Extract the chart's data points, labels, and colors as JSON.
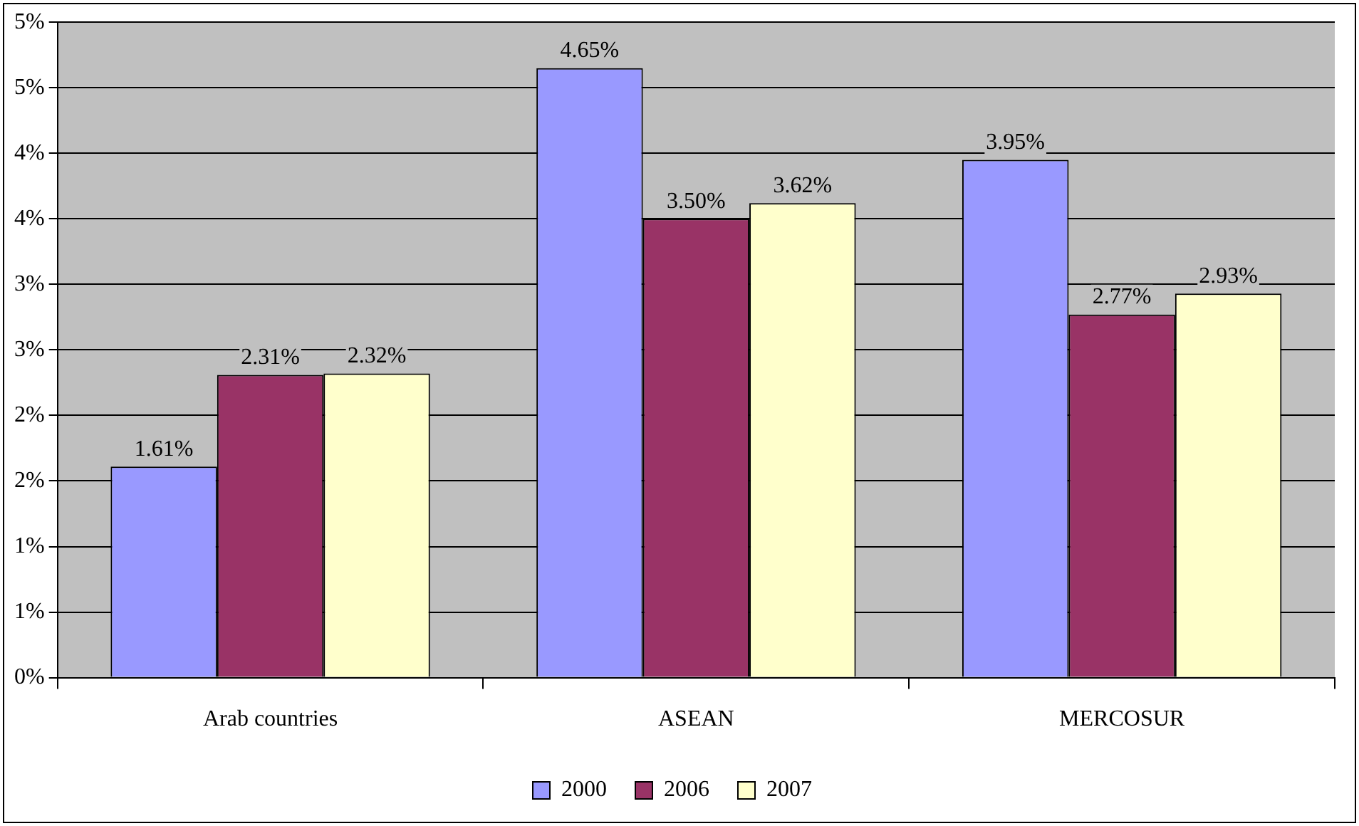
{
  "chart_data": {
    "type": "bar",
    "categories": [
      "Arab countries",
      "ASEAN",
      "MERCOSUR"
    ],
    "series": [
      {
        "name": "2000",
        "color": "#9999ff",
        "values": [
          1.61,
          4.65,
          3.95
        ],
        "value_labels": [
          "1.61%",
          "4.65%",
          "3.95%"
        ]
      },
      {
        "name": "2006",
        "color": "#993366",
        "values": [
          2.31,
          3.5,
          2.77
        ],
        "value_labels": [
          "2.31%",
          "3.50%",
          "2.77%"
        ]
      },
      {
        "name": "2007",
        "color": "#ffffcc",
        "values": [
          2.32,
          3.62,
          2.93
        ],
        "value_labels": [
          "2.32%",
          "3.62%",
          "2.93%"
        ]
      }
    ],
    "ylim": [
      0,
      5
    ],
    "yticks": [
      {
        "value": 0,
        "label": "0%"
      },
      {
        "value": 0.5,
        "label": "1%"
      },
      {
        "value": 1,
        "label": "1%"
      },
      {
        "value": 1.5,
        "label": "2%"
      },
      {
        "value": 2,
        "label": "2%"
      },
      {
        "value": 2.5,
        "label": "3%"
      },
      {
        "value": 3,
        "label": "3%"
      },
      {
        "value": 3.5,
        "label": "4%"
      },
      {
        "value": 4,
        "label": "4%"
      },
      {
        "value": 4.5,
        "label": "5%"
      },
      {
        "value": 5,
        "label": "5%"
      }
    ],
    "grid": "y",
    "legend": "bottom"
  }
}
